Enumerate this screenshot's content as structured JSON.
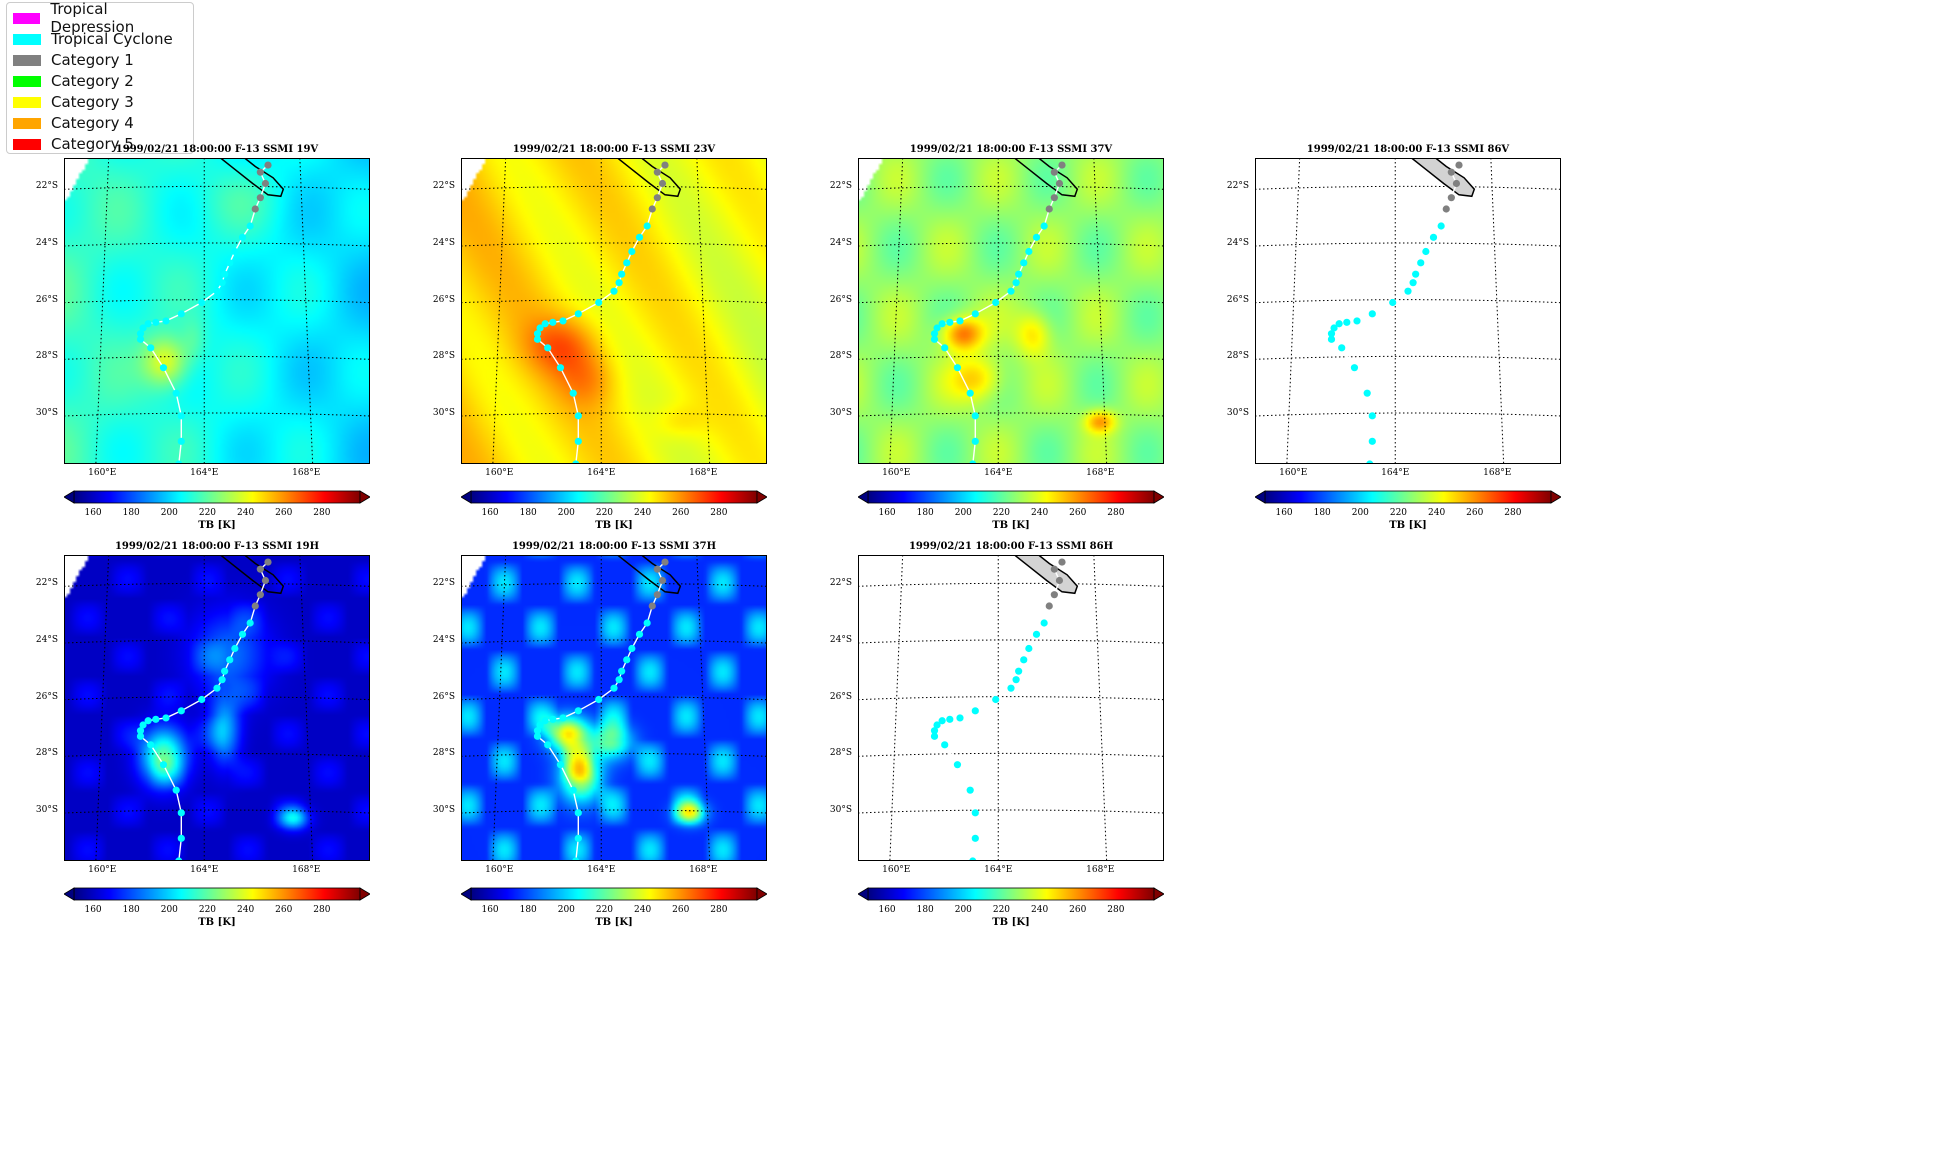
{
  "legend": [
    {
      "label": "Tropical Depression",
      "color": "#ff00ff"
    },
    {
      "label": "Tropical Cyclone",
      "color": "#00ffff"
    },
    {
      "label": "Category 1",
      "color": "#808080"
    },
    {
      "label": "Category 2",
      "color": "#00ff00"
    },
    {
      "label": "Category 3",
      "color": "#ffff00"
    },
    {
      "label": "Category 4",
      "color": "#ffa500"
    },
    {
      "label": "Category 5",
      "color": "#ff0000"
    }
  ],
  "lat_ticks": [
    "22°S",
    "24°S",
    "26°S",
    "28°S",
    "30°S"
  ],
  "lon_ticks": [
    "160°E",
    "164°E",
    "168°E"
  ],
  "colorbar": {
    "label": "TB [K]",
    "ticks": [
      "160",
      "180",
      "200",
      "220",
      "240",
      "260",
      "280"
    ],
    "range": [
      150,
      300
    ]
  },
  "panels": [
    {
      "title": "1999/02/21 18:00:00  F-13 SSMI 19V",
      "field": "v19"
    },
    {
      "title": "1999/02/21 18:00:00  F-13 SSMI 23V",
      "field": "v23"
    },
    {
      "title": "1999/02/21 18:00:00  F-13 SSMI 37V",
      "field": "v37"
    },
    {
      "title": "1999/02/21 18:00:00  F-13 SSMI 86V",
      "field": "none"
    },
    {
      "title": "1999/02/21 18:00:00  F-13 SSMI 19H",
      "field": "h19"
    },
    {
      "title": "1999/02/21 18:00:00  F-13 SSMI 37H",
      "field": "h37"
    },
    {
      "title": "1999/02/21 18:00:00  F-13 SSMI 86H",
      "field": "none"
    }
  ],
  "chart_data": {
    "type": "map",
    "xlim": [
      158.5,
      170.5
    ],
    "ylim": [
      -31.8,
      -21.0
    ],
    "track": [
      {
        "lon": 166.5,
        "lat": -21.25,
        "cat": "Category 1"
      },
      {
        "lon": 166.2,
        "lat": -21.5,
        "cat": "Category 1"
      },
      {
        "lon": 166.4,
        "lat": -21.9,
        "cat": "Category 1"
      },
      {
        "lon": 166.2,
        "lat": -22.4,
        "cat": "Category 1"
      },
      {
        "lon": 166.0,
        "lat": -22.8,
        "cat": "Category 1"
      },
      {
        "lon": 165.8,
        "lat": -23.4,
        "cat": "Tropical Cyclone"
      },
      {
        "lon": 165.5,
        "lat": -23.8,
        "cat": "Tropical Cyclone"
      },
      {
        "lon": 165.2,
        "lat": -24.3,
        "cat": "Tropical Cyclone"
      },
      {
        "lon": 165.0,
        "lat": -24.7,
        "cat": "Tropical Cyclone"
      },
      {
        "lon": 164.8,
        "lat": -25.1,
        "cat": "Tropical Cyclone"
      },
      {
        "lon": 164.7,
        "lat": -25.4,
        "cat": "Tropical Cyclone"
      },
      {
        "lon": 164.5,
        "lat": -25.7,
        "cat": "Tropical Cyclone"
      },
      {
        "lon": 163.9,
        "lat": -26.1,
        "cat": "Tropical Cyclone"
      },
      {
        "lon": 163.1,
        "lat": -26.5,
        "cat": "Tropical Cyclone"
      },
      {
        "lon": 162.5,
        "lat": -26.75,
        "cat": "Tropical Cyclone"
      },
      {
        "lon": 162.1,
        "lat": -26.8,
        "cat": "Tropical Cyclone"
      },
      {
        "lon": 161.8,
        "lat": -26.85,
        "cat": "Tropical Cyclone"
      },
      {
        "lon": 161.6,
        "lat": -27.0,
        "cat": "Tropical Cyclone"
      },
      {
        "lon": 161.5,
        "lat": -27.2,
        "cat": "Tropical Cyclone"
      },
      {
        "lon": 161.5,
        "lat": -27.4,
        "cat": "Tropical Cyclone"
      },
      {
        "lon": 161.9,
        "lat": -27.7,
        "cat": "Tropical Cyclone"
      },
      {
        "lon": 162.4,
        "lat": -28.4,
        "cat": "Tropical Cyclone"
      },
      {
        "lon": 162.9,
        "lat": -29.3,
        "cat": "Tropical Cyclone"
      },
      {
        "lon": 163.1,
        "lat": -30.1,
        "cat": "Tropical Cyclone"
      },
      {
        "lon": 163.1,
        "lat": -31.0,
        "cat": "Tropical Cyclone"
      },
      {
        "lon": 163.0,
        "lat": -31.8,
        "cat": "Tropical Cyclone"
      }
    ]
  }
}
